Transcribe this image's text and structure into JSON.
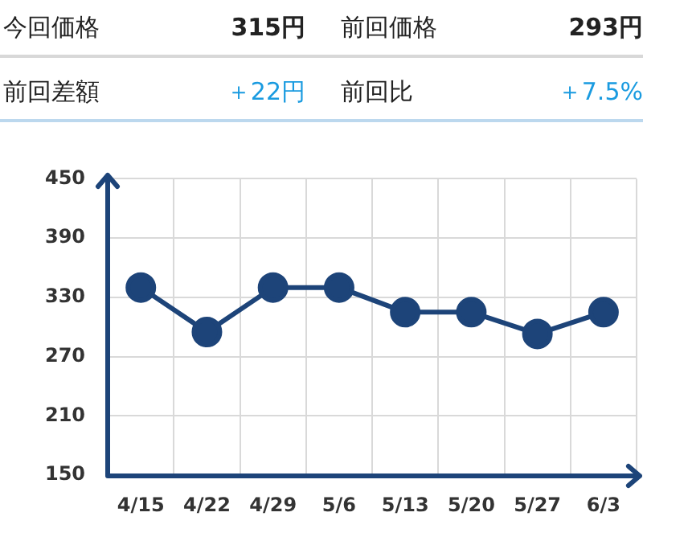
{
  "chart_data": {
    "type": "line",
    "annotations": [
      "今回価格",
      "315円",
      "前回価格",
      "293円",
      "前回差額",
      "＋22円",
      "前回比",
      "＋7.5%"
    ],
    "categories": [
      "4/15",
      "4/22",
      "4/29",
      "5/6",
      "5/13",
      "5/20",
      "5/27",
      "6/3"
    ],
    "series": [
      {
        "color": "#1d4479",
        "values": [
          340,
          295,
          340,
          340,
          315,
          315,
          293,
          315
        ]
      }
    ],
    "ylim": [
      150,
      450
    ],
    "yticks": [
      150,
      210,
      270,
      330,
      390,
      450
    ],
    "grid": true,
    "legend": false,
    "marker": "circle",
    "line_style": "solid"
  }
}
